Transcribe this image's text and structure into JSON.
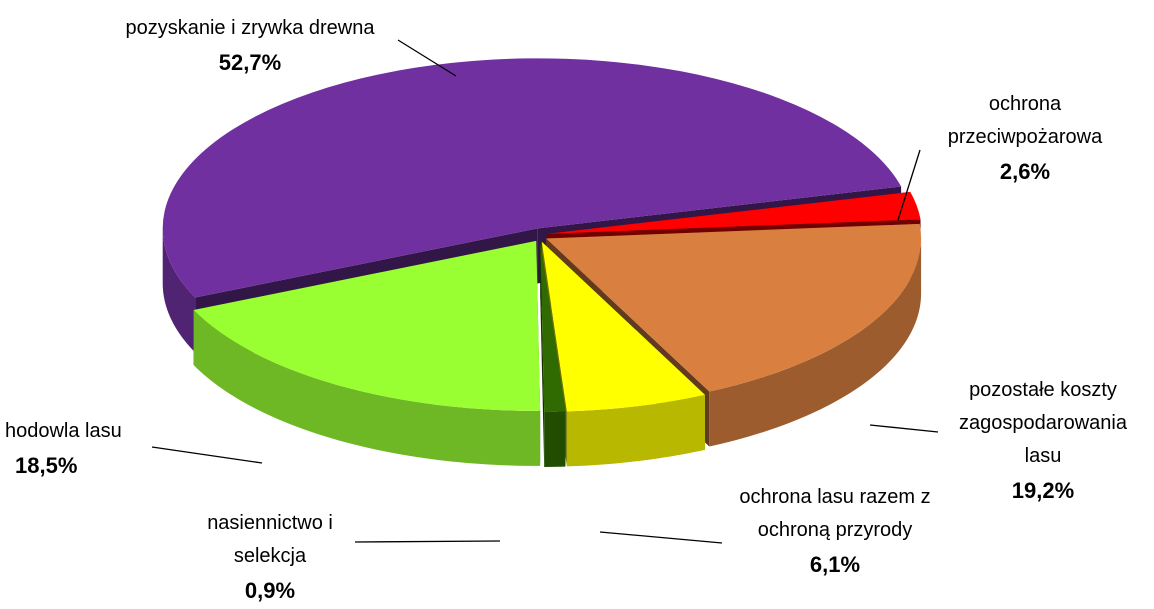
{
  "chart_data": {
    "type": "pie",
    "categories": [
      "pozyskanie i zrywka drewna",
      "ochrona przeciwpożarowa",
      "pozostałe koszty zagospodarowania lasu",
      "ochrona lasu razem z ochroną przyrody",
      "nasiennictwo i selekcja",
      "hodowla lasu"
    ],
    "values": [
      52.7,
      2.6,
      19.2,
      6.1,
      0.9,
      18.5
    ],
    "value_labels": [
      "52,7%",
      "2,6%",
      "19,2%",
      "6,1%",
      "0,9%",
      "18,5%"
    ],
    "colors": [
      "#7030a0",
      "#ff0000",
      "#d98040",
      "#ffff00",
      "#2f6b00",
      "#99ff33"
    ]
  }
}
